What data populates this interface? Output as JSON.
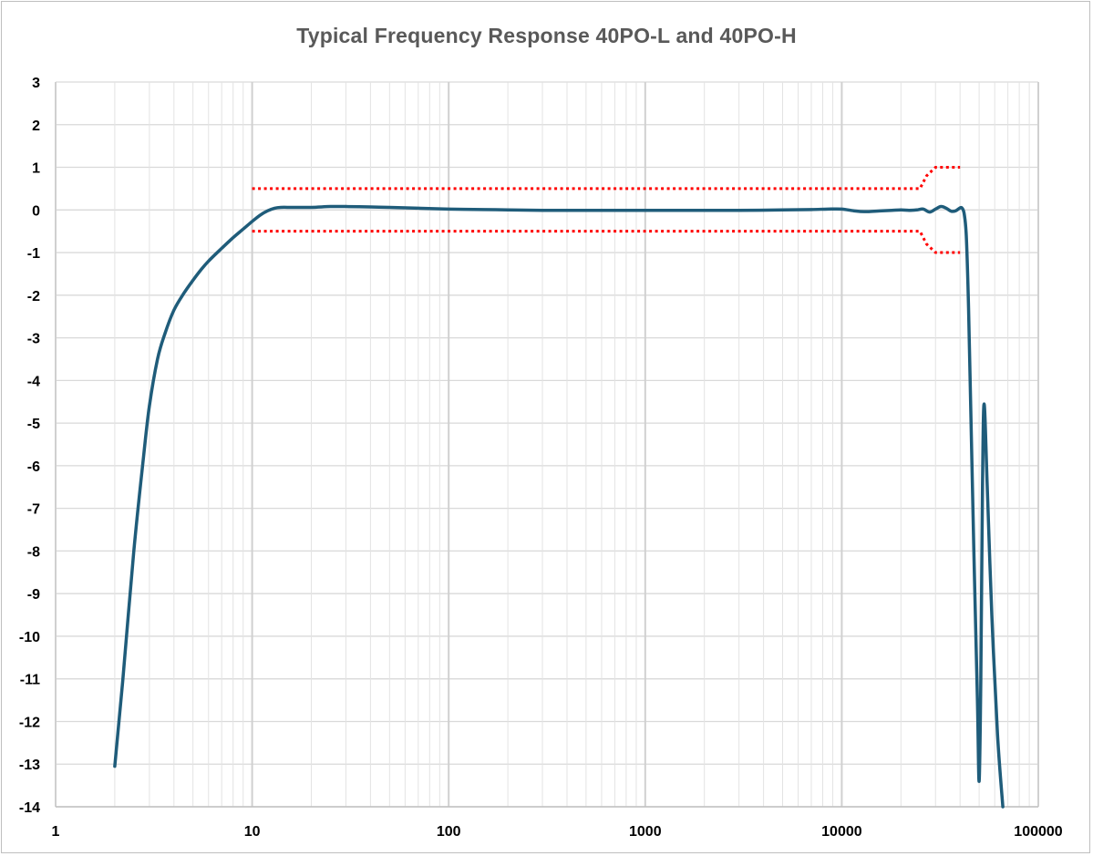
{
  "chart_data": {
    "type": "line",
    "title": "Typical Frequency Response 40PO-L and 40PO-H",
    "xlabel": "",
    "ylabel": "",
    "x_scale": "log",
    "xlim": [
      1,
      100000
    ],
    "ylim": [
      -14,
      3
    ],
    "x_ticks": [
      "1",
      "10",
      "100",
      "1000",
      "10000",
      "100000"
    ],
    "y_ticks": [
      "3",
      "2",
      "1",
      "0",
      "-1",
      "-2",
      "-3",
      "-4",
      "-5",
      "-6",
      "-7",
      "-8",
      "-9",
      "-10",
      "-11",
      "-12",
      "-13",
      "-14"
    ],
    "grid": true,
    "legend": "none",
    "colors": {
      "response": "#1f5c7a",
      "tolerance": "#ff0000",
      "grid": "#d9d9d9"
    },
    "series": [
      {
        "style": "solid",
        "x": [
          2,
          2.2,
          2.5,
          2.8,
          3.0,
          3.3,
          3.6,
          4.0,
          4.5,
          5.0,
          5.5,
          6.0,
          7.0,
          8.0,
          9.0,
          10,
          11,
          12,
          13,
          14,
          16,
          20,
          25,
          30,
          40,
          50,
          70,
          100,
          150,
          200,
          300,
          500,
          1000,
          2000,
          3000,
          5000,
          7000,
          8500,
          10000,
          11500,
          13000,
          16000,
          18000,
          20000,
          22000,
          24000,
          26000,
          28000,
          30000,
          32000,
          34000,
          36000,
          38000,
          40000,
          41000,
          42000,
          43000,
          44000,
          45000,
          47000,
          49000,
          50000,
          51000,
          52000,
          53000,
          55000,
          58000,
          62000,
          66000
        ],
        "y": [
          -13.05,
          -11.0,
          -8.0,
          -5.8,
          -4.6,
          -3.5,
          -2.9,
          -2.35,
          -1.95,
          -1.65,
          -1.4,
          -1.2,
          -0.9,
          -0.65,
          -0.45,
          -0.27,
          -0.12,
          -0.02,
          0.04,
          0.06,
          0.06,
          0.06,
          0.08,
          0.08,
          0.07,
          0.06,
          0.04,
          0.02,
          0.01,
          0.0,
          -0.01,
          -0.01,
          -0.01,
          -0.01,
          -0.01,
          0.0,
          0.01,
          0.02,
          0.02,
          -0.02,
          -0.04,
          -0.02,
          -0.01,
          0.0,
          -0.01,
          0.0,
          0.02,
          -0.05,
          0.02,
          0.08,
          0.04,
          -0.03,
          -0.02,
          0.05,
          0.04,
          -0.1,
          -0.6,
          -2.0,
          -4.0,
          -8.0,
          -11.5,
          -13.4,
          -11.0,
          -6.5,
          -4.55,
          -6.5,
          -9.5,
          -12.3,
          -14.0
        ]
      },
      {
        "style": "dotted",
        "x": [
          10,
          20000,
          25000,
          27000,
          30000,
          40000
        ],
        "y": [
          0.5,
          0.5,
          0.5,
          0.8,
          1.0,
          1.0
        ]
      },
      {
        "style": "dotted",
        "x": [
          10,
          20000,
          25000,
          27000,
          30000,
          40000
        ],
        "y": [
          -0.5,
          -0.5,
          -0.5,
          -0.8,
          -1.0,
          -1.0
        ]
      }
    ]
  }
}
